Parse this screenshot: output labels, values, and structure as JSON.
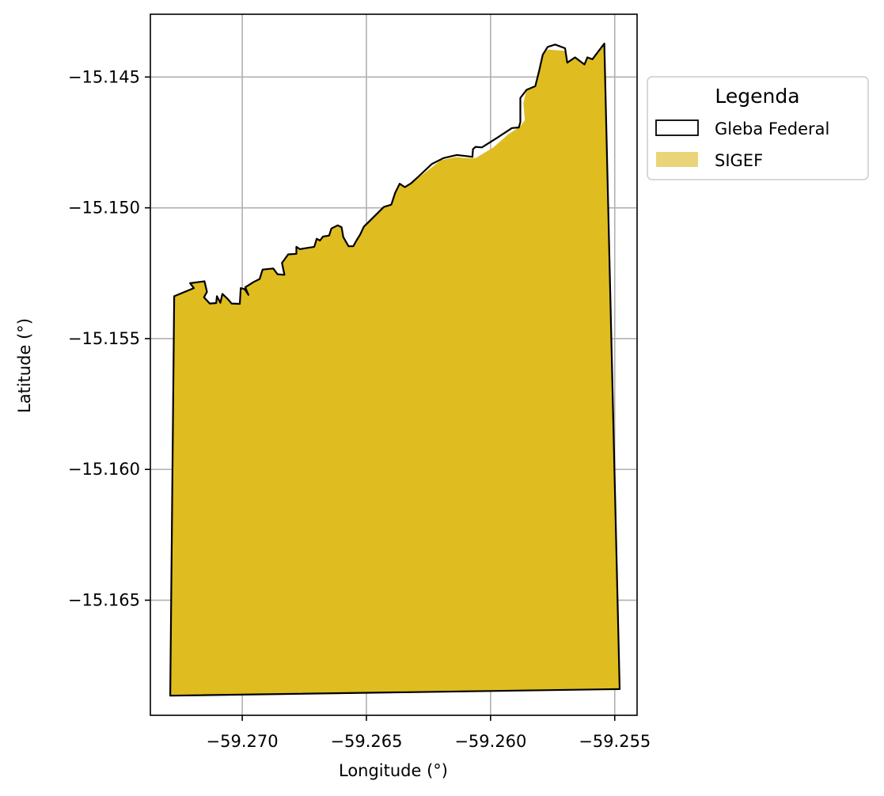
{
  "chart_data": {
    "type": "map",
    "xlabel": "Longitude (°)",
    "ylabel": "Latitude (°)",
    "xlim": [
      -59.2737,
      -59.2541
    ],
    "ylim": [
      -15.1694,
      -15.1426
    ],
    "x_ticks": [
      -59.27,
      -59.265,
      -59.26,
      -59.255
    ],
    "x_tick_labels": [
      "−59.270",
      "−59.265",
      "−59.260",
      "−59.255"
    ],
    "y_ticks": [
      -15.145,
      -15.15,
      -15.155,
      -15.16,
      -15.165
    ],
    "y_tick_labels": [
      "−15.145",
      "−15.150",
      "−15.155",
      "−15.160",
      "−15.165"
    ],
    "grid": true,
    "legend": {
      "title": "Legenda",
      "position": "outside-right",
      "entries": [
        {
          "label": "Gleba Federal",
          "style": "outline"
        },
        {
          "label": "SIGEF",
          "style": "fill"
        }
      ]
    },
    "colors": {
      "sigef_fill": "#dfbc20",
      "sigef_legend": "#ead479",
      "outline": "#000000",
      "grid": "#b0b0b0"
    },
    "gleba_federal": [
      [
        -59.27274,
        -15.15338
      ],
      [
        -59.27195,
        -15.15307
      ],
      [
        -59.2721,
        -15.15288
      ],
      [
        -59.27152,
        -15.15281
      ],
      [
        -59.27142,
        -15.15321
      ],
      [
        -59.27154,
        -15.15342
      ],
      [
        -59.27131,
        -15.15366
      ],
      [
        -59.27105,
        -15.15364
      ],
      [
        -59.27102,
        -15.15338
      ],
      [
        -59.27088,
        -15.15363
      ],
      [
        -59.2708,
        -15.15329
      ],
      [
        -59.27058,
        -15.15349
      ],
      [
        -59.27043,
        -15.15366
      ],
      [
        -59.2701,
        -15.15367
      ],
      [
        -59.27006,
        -15.15307
      ],
      [
        -59.2699,
        -15.15311
      ],
      [
        -59.26975,
        -15.15333
      ],
      [
        -59.26988,
        -15.15304
      ],
      [
        -59.26953,
        -15.15283
      ],
      [
        -59.2693,
        -15.15272
      ],
      [
        -59.26918,
        -15.15236
      ],
      [
        -59.26875,
        -15.15232
      ],
      [
        -59.26858,
        -15.15254
      ],
      [
        -59.2683,
        -15.15256
      ],
      [
        -59.2684,
        -15.15211
      ],
      [
        -59.26815,
        -15.15178
      ],
      [
        -59.26782,
        -15.15176
      ],
      [
        -59.26782,
        -15.15149
      ],
      [
        -59.26768,
        -15.15158
      ],
      [
        -59.2675,
        -15.15155
      ],
      [
        -59.2671,
        -15.15149
      ],
      [
        -59.267,
        -15.15118
      ],
      [
        -59.26687,
        -15.15125
      ],
      [
        -59.26675,
        -15.1511
      ],
      [
        -59.2665,
        -15.15106
      ],
      [
        -59.26641,
        -15.15079
      ],
      [
        -59.26616,
        -15.15067
      ],
      [
        -59.266,
        -15.15074
      ],
      [
        -59.26593,
        -15.15112
      ],
      [
        -59.26572,
        -15.15147
      ],
      [
        -59.26553,
        -15.15147
      ],
      [
        -59.2654,
        -15.15125
      ],
      [
        -59.26525,
        -15.15102
      ],
      [
        -59.2651,
        -15.15072
      ],
      [
        -59.26493,
        -15.15056
      ],
      [
        -59.2643,
        -15.14997
      ],
      [
        -59.264,
        -15.14988
      ],
      [
        -59.26384,
        -15.14942
      ],
      [
        -59.26366,
        -15.14908
      ],
      [
        -59.26345,
        -15.14921
      ],
      [
        -59.2632,
        -15.14906
      ],
      [
        -59.2629,
        -15.1488
      ],
      [
        -59.26237,
        -15.14833
      ],
      [
        -59.2619,
        -15.1481
      ],
      [
        -59.26137,
        -15.14798
      ],
      [
        -59.261,
        -15.14802
      ],
      [
        -59.26073,
        -15.14805
      ],
      [
        -59.26071,
        -15.14776
      ],
      [
        -59.2606,
        -15.14767
      ],
      [
        -59.26035,
        -15.14769
      ],
      [
        -59.2597,
        -15.1473
      ],
      [
        -59.25914,
        -15.14695
      ],
      [
        -59.25886,
        -15.14693
      ],
      [
        -59.2588,
        -15.14673
      ],
      [
        -59.2588,
        -15.1458
      ],
      [
        -59.25855,
        -15.14549
      ],
      [
        -59.2582,
        -15.14535
      ],
      [
        -59.25805,
        -15.14478
      ],
      [
        -59.2579,
        -15.14415
      ],
      [
        -59.2577,
        -15.14385
      ],
      [
        -59.2574,
        -15.14376
      ],
      [
        -59.257,
        -15.1439
      ],
      [
        -59.25691,
        -15.14445
      ],
      [
        -59.2566,
        -15.14425
      ],
      [
        -59.25622,
        -15.14452
      ],
      [
        -59.2561,
        -15.14425
      ],
      [
        -59.2559,
        -15.14432
      ],
      [
        -59.25542,
        -15.14372
      ],
      [
        -59.2548,
        -15.1684
      ],
      [
        -59.2729,
        -15.16865
      ]
    ],
    "sigef": [
      [
        -59.27274,
        -15.15338
      ],
      [
        -59.27195,
        -15.15307
      ],
      [
        -59.2721,
        -15.15288
      ],
      [
        -59.27152,
        -15.15281
      ],
      [
        -59.27142,
        -15.15321
      ],
      [
        -59.27154,
        -15.15342
      ],
      [
        -59.27131,
        -15.15366
      ],
      [
        -59.27105,
        -15.15364
      ],
      [
        -59.27102,
        -15.15338
      ],
      [
        -59.27088,
        -15.15363
      ],
      [
        -59.2708,
        -15.15329
      ],
      [
        -59.27058,
        -15.15349
      ],
      [
        -59.27043,
        -15.15366
      ],
      [
        -59.2701,
        -15.15367
      ],
      [
        -59.27006,
        -15.15307
      ],
      [
        -59.2699,
        -15.15311
      ],
      [
        -59.26975,
        -15.15333
      ],
      [
        -59.26988,
        -15.15304
      ],
      [
        -59.26953,
        -15.15283
      ],
      [
        -59.2693,
        -15.15272
      ],
      [
        -59.26918,
        -15.15236
      ],
      [
        -59.26875,
        -15.15232
      ],
      [
        -59.26858,
        -15.15254
      ],
      [
        -59.2683,
        -15.15256
      ],
      [
        -59.2684,
        -15.15211
      ],
      [
        -59.26815,
        -15.15178
      ],
      [
        -59.26782,
        -15.15176
      ],
      [
        -59.26782,
        -15.15149
      ],
      [
        -59.26768,
        -15.15158
      ],
      [
        -59.2675,
        -15.15155
      ],
      [
        -59.2671,
        -15.15149
      ],
      [
        -59.267,
        -15.15118
      ],
      [
        -59.26687,
        -15.15125
      ],
      [
        -59.26675,
        -15.1511
      ],
      [
        -59.2665,
        -15.15106
      ],
      [
        -59.26641,
        -15.15079
      ],
      [
        -59.26616,
        -15.15067
      ],
      [
        -59.266,
        -15.15074
      ],
      [
        -59.26593,
        -15.15112
      ],
      [
        -59.26572,
        -15.15147
      ],
      [
        -59.26553,
        -15.15147
      ],
      [
        -59.2654,
        -15.15125
      ],
      [
        -59.26525,
        -15.15102
      ],
      [
        -59.2651,
        -15.15072
      ],
      [
        -59.26493,
        -15.15056
      ],
      [
        -59.2643,
        -15.14997
      ],
      [
        -59.264,
        -15.14988
      ],
      [
        -59.26384,
        -15.14942
      ],
      [
        -59.26366,
        -15.14908
      ],
      [
        -59.26345,
        -15.14921
      ],
      [
        -59.2632,
        -15.14906
      ],
      [
        -59.2625,
        -15.14855
      ],
      [
        -59.262,
        -15.14818
      ],
      [
        -59.2614,
        -15.14806
      ],
      [
        -59.261,
        -15.1481
      ],
      [
        -59.2606,
        -15.1481
      ],
      [
        -59.2599,
        -15.1477
      ],
      [
        -59.2593,
        -15.1472
      ],
      [
        -59.25882,
        -15.1469
      ],
      [
        -59.25862,
        -15.14665
      ],
      [
        -59.25868,
        -15.146
      ],
      [
        -59.25855,
        -15.14549
      ],
      [
        -59.2582,
        -15.14535
      ],
      [
        -59.25805,
        -15.14478
      ],
      [
        -59.2579,
        -15.14415
      ],
      [
        -59.2577,
        -15.14395
      ],
      [
        -59.257,
        -15.144
      ],
      [
        -59.25691,
        -15.14445
      ],
      [
        -59.2566,
        -15.14425
      ],
      [
        -59.25622,
        -15.14452
      ],
      [
        -59.2561,
        -15.14425
      ],
      [
        -59.2559,
        -15.14432
      ],
      [
        -59.25542,
        -15.14372
      ],
      [
        -59.2548,
        -15.1684
      ],
      [
        -59.2729,
        -15.16865
      ]
    ]
  }
}
